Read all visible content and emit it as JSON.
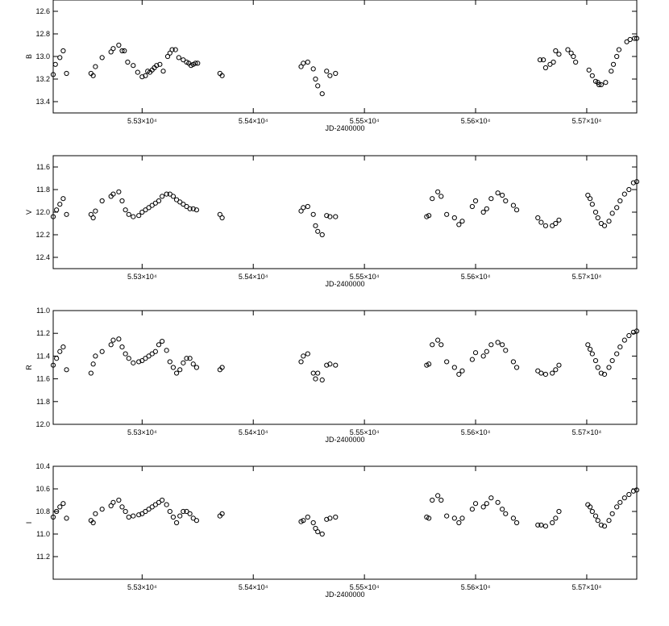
{
  "chart_data": [
    {
      "type": "scatter",
      "band": "B",
      "ylabel": "B",
      "xlabel": "JD-2400000",
      "xlim": [
        55220,
        55745
      ],
      "ylim": [
        13.5,
        12.5
      ],
      "yticks": [
        12.6,
        12.8,
        13.0,
        13.2,
        13.4
      ],
      "ytick_labels": [
        "12.6",
        "12.8",
        "13.0",
        "13.2",
        "13.4"
      ],
      "xticks": [
        55300,
        55400,
        55500,
        55600,
        55700
      ],
      "xtick_labels": [
        "5.53×10⁴",
        "5.54×10⁴",
        "5.55×10⁴",
        "5.56×10⁴",
        "5.57×10⁴"
      ],
      "x": [
        55220,
        55222,
        55226,
        55229,
        55232,
        55254,
        55256,
        55258,
        55264,
        55272,
        55274,
        55279,
        55282,
        55284,
        55287,
        55292,
        55296,
        55300,
        55303,
        55305,
        55307,
        55309,
        55311,
        55313,
        55316,
        55319,
        55323,
        55325,
        55327,
        55330,
        55333,
        55337,
        55340,
        55342,
        55344,
        55346,
        55348,
        55350,
        55370,
        55372,
        55443,
        55445,
        55449,
        55454,
        55456,
        55458,
        55462,
        55466,
        55469,
        55474,
        55710,
        55713,
        55717,
        55722,
        55724,
        55727,
        55729,
        55736,
        55739,
        55743,
        55745,
        55658,
        55661,
        55663,
        55667,
        55670,
        55672,
        55675,
        55683,
        55686,
        55688,
        55690,
        55702,
        55705,
        55708,
        55711
      ],
      "y": [
        13.16,
        13.07,
        13.01,
        12.95,
        13.15,
        13.15,
        13.17,
        13.09,
        13.01,
        12.96,
        12.93,
        12.9,
        12.95,
        12.95,
        13.05,
        13.08,
        13.14,
        13.18,
        13.17,
        13.13,
        13.14,
        13.12,
        13.1,
        13.08,
        13.07,
        13.13,
        13.0,
        12.97,
        12.94,
        12.94,
        13.01,
        13.03,
        13.05,
        13.06,
        13.08,
        13.07,
        13.06,
        13.06,
        13.15,
        13.17,
        13.09,
        13.06,
        13.05,
        13.11,
        13.2,
        13.26,
        13.33,
        13.13,
        13.17,
        13.15,
        13.23,
        13.25,
        13.23,
        13.13,
        13.07,
        13.0,
        12.94,
        12.87,
        12.85,
        12.84,
        12.84,
        13.03,
        13.03,
        13.1,
        13.07,
        13.05,
        12.95,
        12.98,
        12.94,
        12.97,
        13.0,
        13.05,
        13.12,
        13.17,
        13.22,
        13.25
      ]
    },
    {
      "type": "scatter",
      "band": "V",
      "ylabel": "V",
      "xlabel": "JD-2400000",
      "xlim": [
        55220,
        55745
      ],
      "ylim": [
        12.5,
        11.5
      ],
      "yticks": [
        11.6,
        11.8,
        12.0,
        12.2,
        12.4
      ],
      "ytick_labels": [
        "11.6",
        "11.8",
        "12.0",
        "12.2",
        "12.4"
      ],
      "xticks": [
        55300,
        55400,
        55500,
        55600,
        55700
      ],
      "xtick_labels": [
        "5.53×10⁴",
        "5.54×10⁴",
        "5.55×10⁴",
        "5.56×10⁴",
        "5.57×10⁴"
      ],
      "x": [
        55220,
        55223,
        55226,
        55229,
        55232,
        55254,
        55256,
        55258,
        55264,
        55272,
        55274,
        55279,
        55282,
        55285,
        55288,
        55292,
        55297,
        55300,
        55303,
        55306,
        55309,
        55312,
        55315,
        55318,
        55322,
        55325,
        55328,
        55331,
        55334,
        55337,
        55340,
        55343,
        55346,
        55349,
        55370,
        55372,
        55443,
        55445,
        55449,
        55454,
        55456,
        55458,
        55462,
        55466,
        55469,
        55474,
        55556,
        55558,
        55561,
        55566,
        55569,
        55574,
        55581,
        55585,
        55588,
        55597,
        55600,
        55607,
        55610,
        55614,
        55620,
        55624,
        55627,
        55634,
        55637,
        55656,
        55659,
        55663,
        55669,
        55672,
        55675,
        55701,
        55703,
        55705,
        55708,
        55710,
        55713,
        55716,
        55720,
        55723,
        55727,
        55730,
        55734,
        55738,
        55742,
        55745
      ],
      "y": [
        12.04,
        11.98,
        11.93,
        11.88,
        12.02,
        12.02,
        12.05,
        11.99,
        11.9,
        11.86,
        11.84,
        11.82,
        11.9,
        11.98,
        12.02,
        12.04,
        12.03,
        12.0,
        11.98,
        11.96,
        11.94,
        11.92,
        11.9,
        11.86,
        11.84,
        11.84,
        11.86,
        11.89,
        11.91,
        11.93,
        11.95,
        11.97,
        11.97,
        11.98,
        12.02,
        12.05,
        11.99,
        11.96,
        11.95,
        12.02,
        12.12,
        12.17,
        12.2,
        12.03,
        12.04,
        12.04,
        12.04,
        12.03,
        11.88,
        11.82,
        11.86,
        12.02,
        12.05,
        12.11,
        12.08,
        11.95,
        11.9,
        12.0,
        11.97,
        11.88,
        11.83,
        11.85,
        11.9,
        11.94,
        11.98,
        12.05,
        12.09,
        12.12,
        12.12,
        12.1,
        12.07,
        11.85,
        11.88,
        11.93,
        12.0,
        12.05,
        12.1,
        12.12,
        12.08,
        12.01,
        11.96,
        11.9,
        11.84,
        11.8,
        11.74,
        11.73
      ]
    },
    {
      "type": "scatter",
      "band": "R",
      "ylabel": "R",
      "xlabel": "JD-2400000",
      "xlim": [
        55220,
        55745
      ],
      "ylim": [
        12.0,
        11.0
      ],
      "yticks": [
        11.0,
        11.2,
        11.4,
        11.6,
        11.8,
        12.0
      ],
      "ytick_labels": [
        "11.0",
        "11.2",
        "11.4",
        "11.6",
        "11.8",
        "12.0"
      ],
      "xticks": [
        55300,
        55400,
        55500,
        55600,
        55700
      ],
      "xtick_labels": [
        "5.53×10⁴",
        "5.54×10⁴",
        "5.55×10⁴",
        "5.56×10⁴",
        "5.57×10⁴"
      ],
      "x": [
        55220,
        55223,
        55226,
        55229,
        55232,
        55254,
        55256,
        55258,
        55264,
        55272,
        55274,
        55279,
        55282,
        55285,
        55288,
        55292,
        55297,
        55300,
        55303,
        55306,
        55309,
        55312,
        55315,
        55318,
        55322,
        55325,
        55328,
        55331,
        55334,
        55337,
        55340,
        55343,
        55346,
        55349,
        55370,
        55372,
        55443,
        55445,
        55449,
        55454,
        55456,
        55458,
        55462,
        55466,
        55469,
        55474,
        55556,
        55558,
        55561,
        55566,
        55569,
        55574,
        55581,
        55585,
        55588,
        55597,
        55600,
        55607,
        55610,
        55614,
        55620,
        55624,
        55627,
        55634,
        55637,
        55656,
        55659,
        55663,
        55669,
        55672,
        55675,
        55701,
        55703,
        55705,
        55708,
        55710,
        55713,
        55716,
        55720,
        55723,
        55727,
        55730,
        55734,
        55738,
        55742,
        55745
      ],
      "y": [
        11.48,
        11.42,
        11.36,
        11.32,
        11.52,
        11.55,
        11.47,
        11.4,
        11.36,
        11.3,
        11.26,
        11.25,
        11.32,
        11.38,
        11.42,
        11.46,
        11.45,
        11.44,
        11.42,
        11.4,
        11.38,
        11.36,
        11.3,
        11.27,
        11.35,
        11.45,
        11.5,
        11.55,
        11.52,
        11.46,
        11.42,
        11.42,
        11.47,
        11.5,
        11.52,
        11.5,
        11.45,
        11.4,
        11.38,
        11.55,
        11.6,
        11.55,
        11.61,
        11.48,
        11.47,
        11.48,
        11.48,
        11.47,
        11.3,
        11.26,
        11.3,
        11.45,
        11.5,
        11.56,
        11.53,
        11.43,
        11.37,
        11.4,
        11.36,
        11.3,
        11.28,
        11.3,
        11.35,
        11.45,
        11.5,
        11.53,
        11.55,
        11.56,
        11.55,
        11.52,
        11.48,
        11.3,
        11.34,
        11.38,
        11.44,
        11.5,
        11.55,
        11.56,
        11.5,
        11.44,
        11.38,
        11.32,
        11.26,
        11.22,
        11.19,
        11.18
      ]
    },
    {
      "type": "scatter",
      "band": "I",
      "ylabel": "I",
      "xlabel": "JD-2400000",
      "xlim": [
        55220,
        55745
      ],
      "ylim": [
        11.4,
        10.4
      ],
      "yticks": [
        10.4,
        10.6,
        10.8,
        11.0,
        11.2
      ],
      "ytick_labels": [
        "10.4",
        "10.6",
        "10.8",
        "11.0",
        "11.2"
      ],
      "xticks": [
        55300,
        55400,
        55500,
        55600,
        55700
      ],
      "xtick_labels": [
        "5.53×10⁴",
        "5.54×10⁴",
        "5.55×10⁴",
        "5.56×10⁴",
        "5.57×10⁴"
      ],
      "x": [
        55220,
        55223,
        55226,
        55229,
        55232,
        55254,
        55256,
        55258,
        55264,
        55272,
        55274,
        55279,
        55282,
        55285,
        55288,
        55292,
        55297,
        55300,
        55303,
        55306,
        55309,
        55312,
        55315,
        55318,
        55322,
        55325,
        55328,
        55331,
        55334,
        55337,
        55340,
        55343,
        55346,
        55349,
        55370,
        55372,
        55443,
        55445,
        55449,
        55454,
        55456,
        55458,
        55462,
        55466,
        55469,
        55474,
        55556,
        55558,
        55561,
        55566,
        55569,
        55574,
        55581,
        55585,
        55588,
        55597,
        55600,
        55607,
        55610,
        55614,
        55620,
        55624,
        55627,
        55634,
        55637,
        55656,
        55659,
        55663,
        55669,
        55672,
        55675,
        55701,
        55703,
        55705,
        55708,
        55710,
        55713,
        55716,
        55720,
        55723,
        55727,
        55730,
        55734,
        55738,
        55742,
        55745
      ],
      "y": [
        10.85,
        10.8,
        10.76,
        10.73,
        10.86,
        10.88,
        10.9,
        10.82,
        10.78,
        10.75,
        10.72,
        10.7,
        10.76,
        10.8,
        10.85,
        10.84,
        10.83,
        10.82,
        10.8,
        10.78,
        10.76,
        10.74,
        10.72,
        10.7,
        10.74,
        10.8,
        10.85,
        10.9,
        10.84,
        10.8,
        10.8,
        10.82,
        10.86,
        10.88,
        10.84,
        10.82,
        10.89,
        10.88,
        10.85,
        10.9,
        10.95,
        10.98,
        11.0,
        10.87,
        10.86,
        10.85,
        10.85,
        10.86,
        10.7,
        10.66,
        10.7,
        10.84,
        10.86,
        10.9,
        10.86,
        10.78,
        10.73,
        10.76,
        10.73,
        10.68,
        10.72,
        10.78,
        10.82,
        10.86,
        10.9,
        10.92,
        10.92,
        10.93,
        10.9,
        10.86,
        10.8,
        10.74,
        10.76,
        10.8,
        10.84,
        10.88,
        10.92,
        10.93,
        10.88,
        10.82,
        10.76,
        10.72,
        10.68,
        10.65,
        10.62,
        10.61
      ]
    }
  ]
}
